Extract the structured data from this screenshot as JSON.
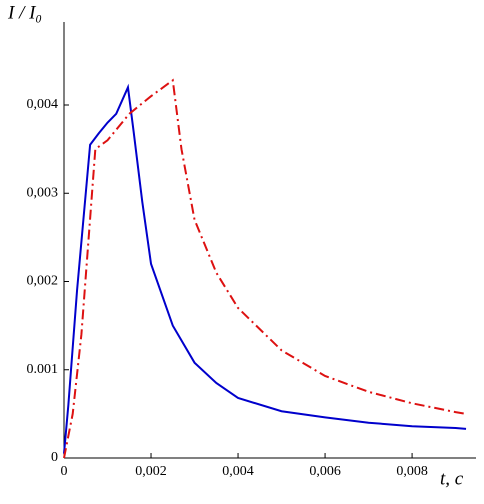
{
  "chart_data": {
    "type": "line",
    "y_label": "I / I₀",
    "x_label": "t,  c",
    "xlim": [
      0,
      0.0094
    ],
    "ylim": [
      0,
      0.00485
    ],
    "xticks": [
      0,
      {
        "value": 0.002,
        "label": "0,002"
      },
      {
        "value": 0.004,
        "label": "0,004"
      },
      {
        "value": 0.006,
        "label": "0,006"
      },
      {
        "value": 0.008,
        "label": "0,008"
      }
    ],
    "yticks": [
      0,
      {
        "value": 0.001,
        "label": "0.001"
      },
      {
        "value": 0.002,
        "label": "0,002"
      },
      {
        "value": 0.003,
        "label": "0,003"
      },
      {
        "value": 0.004,
        "label": "0,004"
      }
    ],
    "grid": false,
    "series": [
      {
        "color": "#0000cc",
        "dash": "solid",
        "x": [
          0,
          0.0001,
          0.0003,
          0.0006,
          0.0008,
          0.001,
          0.0012,
          0.00147,
          0.0016,
          0.0018,
          0.002,
          0.0025,
          0.003,
          0.0035,
          0.004,
          0.005,
          0.006,
          0.007,
          0.008,
          0.009,
          0.00924
        ],
        "values": [
          5e-05,
          0.0006,
          0.0019,
          0.00355,
          0.00368,
          0.0038,
          0.0039,
          0.0042,
          0.0037,
          0.0029,
          0.0022,
          0.0015,
          0.00108,
          0.00085,
          0.00068,
          0.00053,
          0.00046,
          0.0004,
          0.00036,
          0.00034,
          0.00033
        ]
      },
      {
        "color": "#dd1111",
        "dash": "dashdot",
        "x": [
          0,
          0.0002,
          0.0004,
          0.00072,
          0.001,
          0.0015,
          0.002,
          0.0025,
          0.0027,
          0.003,
          0.0035,
          0.004,
          0.005,
          0.006,
          0.007,
          0.008,
          0.009,
          0.00924
        ],
        "values": [
          0,
          0.0005,
          0.0014,
          0.0035,
          0.0036,
          0.0039,
          0.0041,
          0.00428,
          0.0035,
          0.0027,
          0.0021,
          0.0017,
          0.00122,
          0.00093,
          0.00075,
          0.00062,
          0.00052,
          0.0005
        ]
      }
    ]
  }
}
